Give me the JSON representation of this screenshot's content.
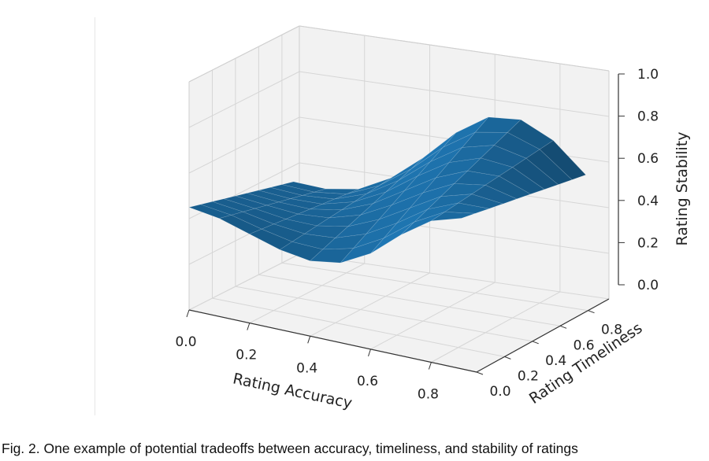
{
  "figure": {
    "caption": "Fig. 2. One example of potential tradeoffs between accuracy, timeliness, and stability of ratings"
  },
  "chart_data": {
    "type": "surface",
    "colors": {
      "surface": "#1f77b4",
      "pane": "#f2f2f2",
      "grid": "#d6d6d6"
    },
    "xlabel": "Rating Accuracy",
    "ylabel": "Rating Timeliness",
    "zlabel": "Rating Stability",
    "xlim": [
      0,
      0.95
    ],
    "ylim": [
      0,
      0.95
    ],
    "zlim": [
      0,
      1.0
    ],
    "x_ticks": [
      "0.0",
      "0.2",
      "0.4",
      "0.6",
      "0.8"
    ],
    "y_ticks": [
      "0.0",
      "0.2",
      "0.4",
      "0.6",
      "0.8"
    ],
    "z_ticks": [
      "0.0",
      "0.2",
      "0.4",
      "0.6",
      "0.8",
      "1.0"
    ],
    "grid": true,
    "surface": {
      "x": [
        0.0,
        0.1,
        0.2,
        0.3,
        0.4,
        0.5,
        0.6,
        0.7,
        0.8,
        0.9
      ],
      "y": [
        0.0,
        0.1,
        0.2,
        0.3,
        0.4,
        0.5,
        0.6,
        0.7,
        0.8,
        0.9
      ],
      "z_at_y0": [
        0.45,
        0.43,
        0.39,
        0.35,
        0.33,
        0.35,
        0.42,
        0.53,
        0.62,
        0.66
      ],
      "z_at_y09": [
        0.33,
        0.32,
        0.34,
        0.41,
        0.52,
        0.65,
        0.74,
        0.75,
        0.68,
        0.55
      ]
    }
  }
}
